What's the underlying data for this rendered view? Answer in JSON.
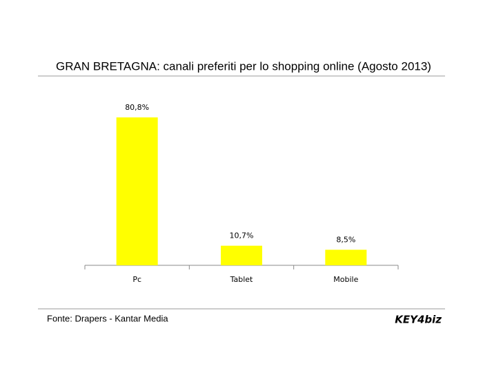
{
  "chart_data": {
    "type": "bar",
    "title": "GRAN BRETAGNA: canali preferiti per lo shopping online (Agosto 2013)",
    "categories": [
      "Pc",
      "Tablet",
      "Mobile"
    ],
    "values": [
      80.8,
      10.7,
      8.5
    ],
    "value_labels": [
      "80,8%",
      "10,7%",
      "8,5%"
    ],
    "color": "#ffff00",
    "source": "Fonte: Drapers - Kantar Media",
    "logo": "KEY4biz"
  }
}
